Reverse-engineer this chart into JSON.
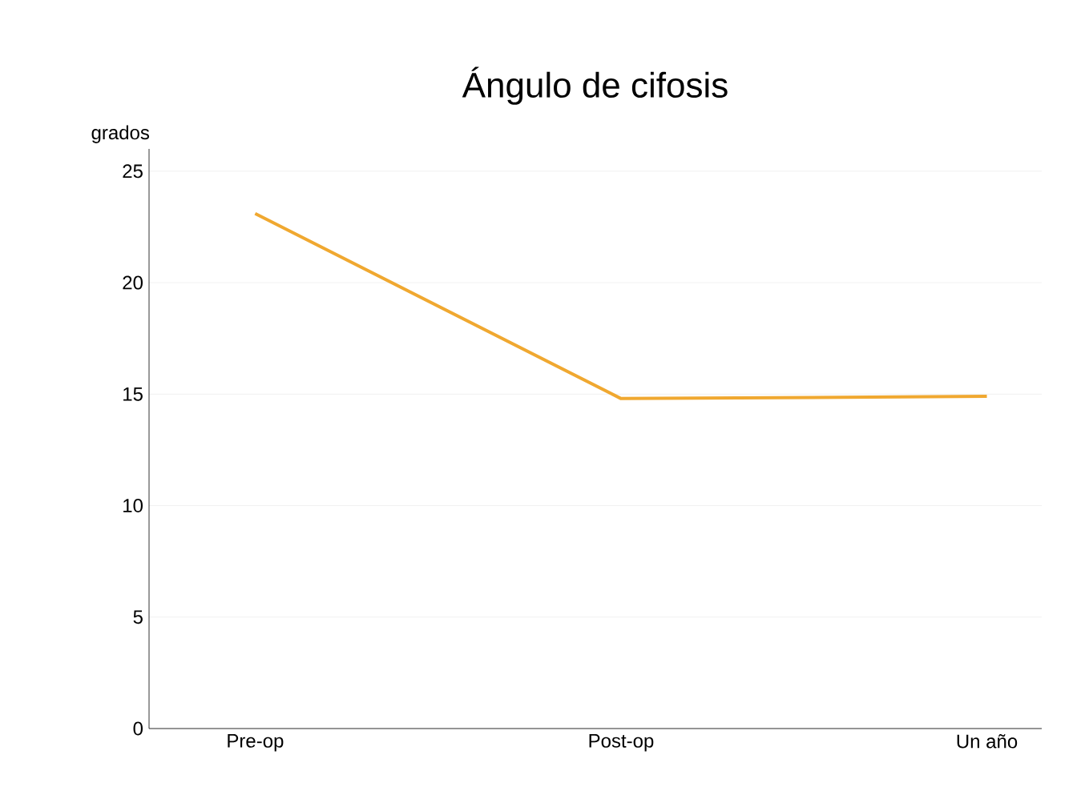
{
  "chart_data": {
    "type": "line",
    "title": "Ángulo de cifosis",
    "ylabel": "grados",
    "categories": [
      "Pre-op",
      "Post-op",
      "Un año"
    ],
    "series": [
      {
        "color": "#f0a830",
        "values": [
          23.1,
          14.8,
          14.9
        ]
      }
    ],
    "ylim": [
      0,
      26
    ],
    "yticks": [
      0,
      5,
      10,
      15,
      20,
      25
    ],
    "grid": "y",
    "marker": "none",
    "line_style": "solid"
  }
}
